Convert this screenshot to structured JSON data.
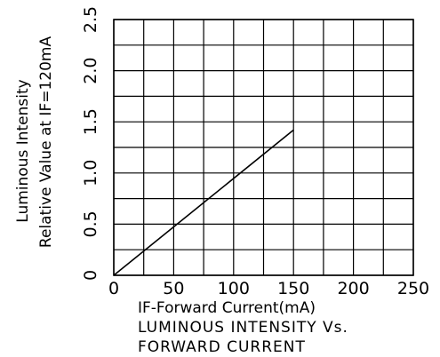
{
  "chart_data": {
    "type": "line",
    "title_lines": [
      "LUMINOUS INTENSITY Vs.",
      "FORWARD CURRENT"
    ],
    "xlabel": "IF-Forward Current(mA)",
    "ylabel_lines": [
      "Luminous Intensity",
      "Relative Value at IF=120mA"
    ],
    "xlim": [
      0,
      250
    ],
    "ylim": [
      0,
      2.5
    ],
    "x_ticks": [
      0,
      50,
      100,
      150,
      200,
      250
    ],
    "y_ticks": [
      0,
      0.5,
      1.0,
      1.5,
      2.0,
      2.5
    ],
    "x_tick_labels": [
      "0",
      "50",
      "100",
      "150",
      "200",
      "250"
    ],
    "y_tick_labels": [
      "0",
      "0.5",
      "1.0",
      "1.5",
      "2.0",
      "2.5"
    ],
    "grid": true,
    "grid_x_step": 25,
    "grid_y_step": 0.25,
    "series": [
      {
        "x": [
          0,
          150
        ],
        "y": [
          0,
          1.42
        ]
      }
    ]
  }
}
